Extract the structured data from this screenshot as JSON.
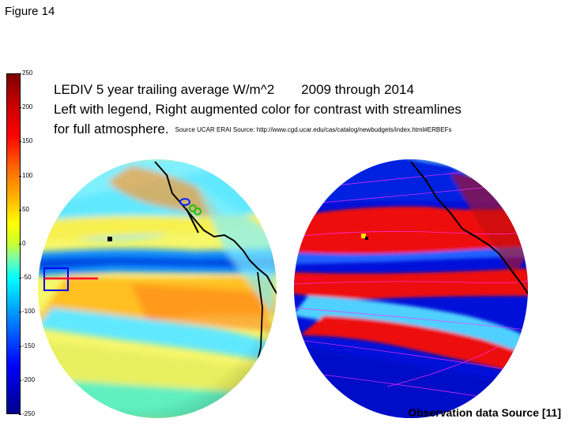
{
  "figure_label": "Figure 14",
  "title": {
    "line1_a": "LEDIV  5 year trailing average W/m^2",
    "line1_b": "2009 through 2014",
    "line2": "Left with legend, Right augmented color for contrast with streamlines",
    "line3": "for full atmosphere.",
    "source": "Source UCAR ERAI Source: http://www.cgd.ucar.edu/cas/catalog/newbudgets/index.html#ERBEFs"
  },
  "colorbar": {
    "ticks": [
      "250",
      "200",
      "150",
      "100",
      "50",
      "0",
      "-50",
      "-100",
      "-150",
      "-200",
      "-250"
    ],
    "min": -250,
    "max": 250
  },
  "footer": {
    "observation_source": "Observation data Source [11]"
  }
}
